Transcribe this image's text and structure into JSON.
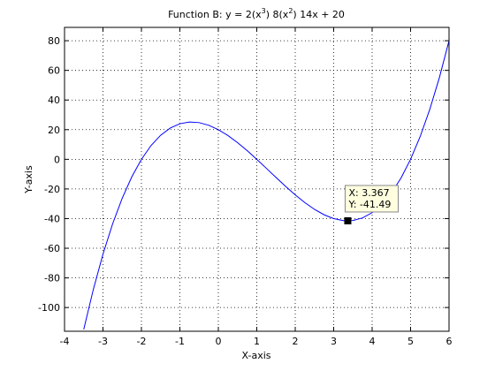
{
  "chart_data": {
    "type": "line",
    "title": [
      "Function B: y = 2(x",
      "3",
      ")    8(x",
      "2",
      ")    14x + 20"
    ],
    "x_label": "X-axis",
    "y_label": "Y-axis",
    "x": [
      -3.5,
      -3.25,
      -3,
      -2.75,
      -2.5,
      -2.25,
      -2,
      -1.75,
      -1.5,
      -1.25,
      -1,
      -0.75,
      -0.5,
      -0.25,
      0,
      0.25,
      0.5,
      0.75,
      1,
      1.25,
      1.5,
      1.75,
      2,
      2.25,
      2.5,
      2.75,
      3,
      3.25,
      3.5,
      3.75,
      4,
      4.25,
      4.5,
      4.75,
      5,
      5.25,
      5.5,
      5.75,
      6
    ],
    "series": [
      {
        "color": "#0000ff",
        "values": [
          -114.75,
          -87.66,
          -64,
          -43.59,
          -26.25,
          -11.78,
          0,
          9.28,
          16.25,
          21.09,
          24,
          25.16,
          24.75,
          22.97,
          20,
          16.03,
          11.25,
          5.84,
          0,
          -6.09,
          -12.25,
          -18.28,
          -24,
          -29.22,
          -33.75,
          -37.41,
          -40,
          -41.34,
          -41.25,
          -39.53,
          -36,
          -30.47,
          -22.75,
          -12.66,
          0,
          15.41,
          33.75,
          55.22,
          80
        ]
      }
    ],
    "xlim": [
      -4,
      6
    ],
    "ylim": [
      -116,
      89
    ],
    "xticks": [
      -4,
      -3,
      -2,
      -1,
      0,
      1,
      2,
      3,
      4,
      5,
      6
    ],
    "yticks": [
      -100,
      -80,
      -60,
      -40,
      -20,
      0,
      20,
      40,
      60,
      80
    ],
    "grid": true,
    "datatip": {
      "x": 3.367,
      "y": -41.49,
      "labels": [
        "X: 3.367",
        "Y: -41.49"
      ]
    }
  }
}
